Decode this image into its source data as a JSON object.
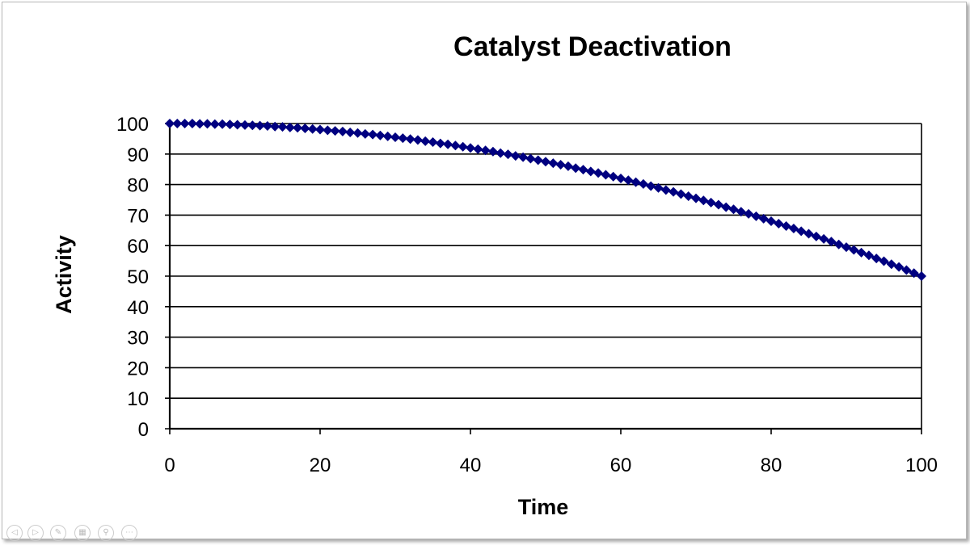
{
  "chart_data": {
    "type": "line",
    "title": "Catalyst Deactivation",
    "xlabel": "Time",
    "ylabel": "Activity",
    "xlim": [
      0,
      100
    ],
    "ylim": [
      0,
      100
    ],
    "xticks": [
      0,
      20,
      40,
      60,
      80,
      100
    ],
    "yticks": [
      0,
      10,
      20,
      30,
      40,
      50,
      60,
      70,
      80,
      90,
      100
    ],
    "grid": "horizontal",
    "legend": "none",
    "marker": "diamond",
    "color": "#000080",
    "series": [
      {
        "x": [
          0,
          1,
          2,
          3,
          4,
          5,
          6,
          7,
          8,
          9,
          10,
          11,
          12,
          13,
          14,
          15,
          16,
          17,
          18,
          19,
          20,
          21,
          22,
          23,
          24,
          25,
          26,
          27,
          28,
          29,
          30,
          31,
          32,
          33,
          34,
          35,
          36,
          37,
          38,
          39,
          40,
          41,
          42,
          43,
          44,
          45,
          46,
          47,
          48,
          49,
          50,
          51,
          52,
          53,
          54,
          55,
          56,
          57,
          58,
          59,
          60,
          61,
          62,
          63,
          64,
          65,
          66,
          67,
          68,
          69,
          70,
          71,
          72,
          73,
          74,
          75,
          76,
          77,
          78,
          79,
          80,
          81,
          82,
          83,
          84,
          85,
          86,
          87,
          88,
          89,
          90,
          91,
          92,
          93,
          94,
          95,
          96,
          97,
          98,
          99,
          100
        ],
        "y": [
          100,
          100,
          100,
          100,
          99.9,
          99.9,
          99.8,
          99.8,
          99.7,
          99.6,
          99.5,
          99.4,
          99.3,
          99.2,
          99.0,
          98.9,
          98.7,
          98.6,
          98.4,
          98.2,
          98,
          97.8,
          97.6,
          97.4,
          97.1,
          96.9,
          96.6,
          96.4,
          96.1,
          95.8,
          95.5,
          95.2,
          94.9,
          94.6,
          94.2,
          93.9,
          93.5,
          93.2,
          92.8,
          92.4,
          92,
          91.6,
          91.2,
          90.8,
          90.3,
          89.9,
          89.4,
          89.0,
          88.5,
          88.0,
          87.5,
          87.0,
          86.5,
          86.0,
          85.4,
          84.9,
          84.3,
          83.8,
          83.2,
          82.6,
          82,
          81.4,
          80.8,
          80.2,
          79.5,
          78.9,
          78.2,
          77.6,
          76.9,
          76.2,
          75.5,
          74.8,
          74.1,
          73.4,
          72.6,
          71.9,
          71.1,
          70.4,
          69.6,
          68.8,
          68,
          67.2,
          66.4,
          65.6,
          64.7,
          63.9,
          63.0,
          62.2,
          61.3,
          60.4,
          59.5,
          58.6,
          57.7,
          56.8,
          55.8,
          54.9,
          53.9,
          53.0,
          52.0,
          51.0,
          50
        ]
      }
    ]
  },
  "slide_controls": [
    "previous",
    "next",
    "pen",
    "slides",
    "zoom",
    "more"
  ]
}
